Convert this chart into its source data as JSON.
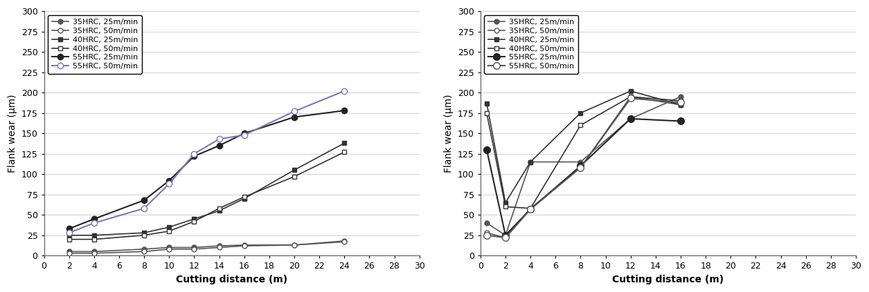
{
  "left": {
    "xlabel": "Cutting distance (m)",
    "ylabel": "Flank wear (μm)",
    "xlim": [
      0,
      30
    ],
    "ylim": [
      0,
      300
    ],
    "xticks": [
      0,
      2,
      4,
      6,
      8,
      10,
      12,
      14,
      16,
      18,
      20,
      22,
      24,
      26,
      28,
      30
    ],
    "yticks": [
      0,
      25,
      50,
      75,
      100,
      125,
      150,
      175,
      200,
      225,
      250,
      275,
      300
    ],
    "series": [
      {
        "label": "35HRC, 25m/min",
        "x": [
          2,
          4,
          8,
          10,
          12,
          14,
          16,
          20,
          24
        ],
        "y": [
          5,
          5,
          8,
          10,
          10,
          12,
          13,
          13,
          18
        ],
        "color": "#555555",
        "marker": "o",
        "fillstyle": "full",
        "markersize": 5,
        "linewidth": 1.2,
        "zorder": 3
      },
      {
        "label": "35HRC, 50m/min",
        "x": [
          2,
          4,
          8,
          10,
          12,
          14,
          16,
          20,
          24
        ],
        "y": [
          3,
          3,
          5,
          8,
          8,
          10,
          12,
          13,
          17
        ],
        "color": "#555555",
        "marker": "o",
        "fillstyle": "none",
        "markersize": 5,
        "linewidth": 1.2,
        "zorder": 3
      },
      {
        "label": "40HRC, 25m/min",
        "x": [
          2,
          4,
          8,
          10,
          12,
          14,
          16,
          20,
          24
        ],
        "y": [
          25,
          25,
          28,
          35,
          45,
          55,
          70,
          105,
          138
        ],
        "color": "#333333",
        "marker": "s",
        "fillstyle": "full",
        "markersize": 5,
        "linewidth": 1.2,
        "zorder": 4
      },
      {
        "label": "40HRC, 50m/min",
        "x": [
          2,
          4,
          8,
          10,
          12,
          14,
          16,
          20,
          24
        ],
        "y": [
          20,
          20,
          25,
          30,
          42,
          58,
          72,
          97,
          127
        ],
        "color": "#333333",
        "marker": "s",
        "fillstyle": "none",
        "markersize": 5,
        "linewidth": 1.2,
        "zorder": 4
      },
      {
        "label": "55HRC, 25m/min",
        "x": [
          2,
          4,
          8,
          10,
          12,
          14,
          16,
          20,
          24
        ],
        "y": [
          33,
          45,
          68,
          92,
          122,
          135,
          150,
          170,
          178
        ],
        "color": "#222222",
        "marker": "o",
        "fillstyle": "full",
        "markersize": 6,
        "linewidth": 1.5,
        "zorder": 5
      },
      {
        "label": "55HRC, 50m/min",
        "x": [
          2,
          4,
          8,
          10,
          12,
          14,
          16,
          20,
          24
        ],
        "y": [
          28,
          40,
          58,
          88,
          125,
          143,
          148,
          177,
          202
        ],
        "color": "#7777bb",
        "marker": "o",
        "fillstyle": "none",
        "markersize": 6,
        "linewidth": 1.5,
        "zorder": 5
      }
    ]
  },
  "right": {
    "xlabel": "Cutting distance (m)",
    "ylabel": "Flank wear (μm)",
    "xlim": [
      0,
      30
    ],
    "ylim": [
      0,
      300
    ],
    "xticks": [
      0,
      2,
      4,
      6,
      8,
      10,
      12,
      14,
      16,
      18,
      20,
      22,
      24,
      26,
      28,
      30
    ],
    "yticks": [
      0,
      25,
      50,
      75,
      100,
      125,
      150,
      175,
      200,
      225,
      250,
      275,
      300
    ],
    "series": [
      {
        "label": "35HRC, 25m/min",
        "x": [
          0.5,
          2,
          4,
          8,
          12,
          16
        ],
        "y": [
          40,
          25,
          115,
          115,
          168,
          195
        ],
        "color": "#555555",
        "marker": "o",
        "fillstyle": "full",
        "markersize": 5,
        "linewidth": 1.2,
        "zorder": 3
      },
      {
        "label": "35HRC, 50m/min",
        "x": [
          0.5,
          2,
          4,
          8,
          12,
          16
        ],
        "y": [
          28,
          22,
          58,
          108,
          195,
          185
        ],
        "color": "#555555",
        "marker": "o",
        "fillstyle": "none",
        "markersize": 5,
        "linewidth": 1.2,
        "zorder": 3
      },
      {
        "label": "40HRC, 25m/min",
        "x": [
          0.5,
          2,
          4,
          8,
          12,
          16
        ],
        "y": [
          187,
          65,
          115,
          175,
          202,
          185
        ],
        "color": "#333333",
        "marker": "s",
        "fillstyle": "full",
        "markersize": 5,
        "linewidth": 1.2,
        "zorder": 4
      },
      {
        "label": "40HRC, 50m/min",
        "x": [
          0.5,
          2,
          4,
          8,
          12,
          16
        ],
        "y": [
          175,
          60,
          58,
          160,
          195,
          190
        ],
        "color": "#333333",
        "marker": "s",
        "fillstyle": "none",
        "markersize": 5,
        "linewidth": 1.2,
        "zorder": 4
      },
      {
        "label": "55HRC, 25m/min",
        "x": [
          0.5,
          2,
          4,
          8,
          12,
          16
        ],
        "y": [
          130,
          25,
          57,
          110,
          168,
          165
        ],
        "color": "#222222",
        "marker": "o",
        "fillstyle": "full",
        "markersize": 7,
        "linewidth": 1.5,
        "zorder": 5
      },
      {
        "label": "55HRC, 50m/min",
        "x": [
          0.5,
          2,
          4,
          8,
          12,
          16
        ],
        "y": [
          25,
          22,
          57,
          108,
          193,
          188
        ],
        "color": "#555555",
        "marker": "o",
        "fillstyle": "none",
        "markersize": 7,
        "linewidth": 1.5,
        "zorder": 5
      }
    ]
  }
}
